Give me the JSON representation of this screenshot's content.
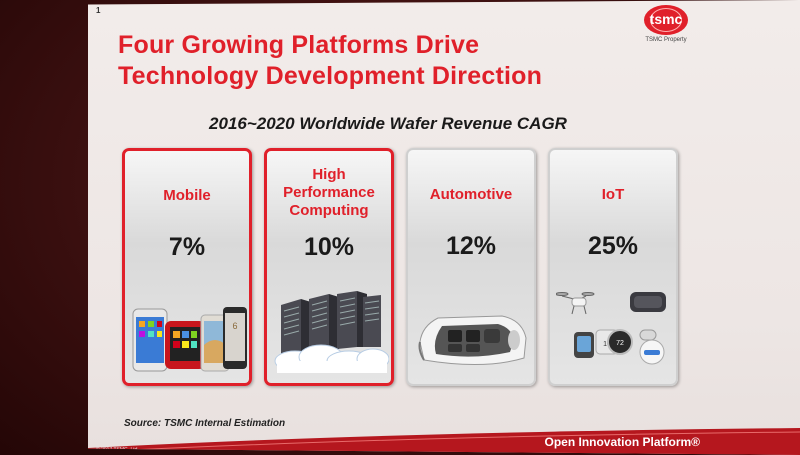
{
  "slide": {
    "number": "1",
    "title_lines": [
      "Four Growing Platforms Drive",
      "Technology Development Direction"
    ],
    "logo": {
      "wordmark": "tsmc",
      "caption": "TSMC Property"
    },
    "subtitle": "2016~2020 Worldwide Wafer Revenue CAGR",
    "platforms": [
      {
        "label": "Mobile",
        "value": "7%",
        "highlighted": true
      },
      {
        "label": "High Performance Computing",
        "value": "10%",
        "highlighted": true
      },
      {
        "label": "Automotive",
        "value": "12%",
        "highlighted": false
      },
      {
        "label": "IoT",
        "value": "25%",
        "highlighted": false
      }
    ],
    "source": "Source: TSMC Internal Estimation",
    "footer": "Open Innovation Platform®",
    "copyright": "© 2017 TSMC, Ltd"
  },
  "colors": {
    "accent": "#e0202a",
    "text_dark": "#1a1a1a",
    "card_border_plain": "#cfcfcf"
  },
  "icons": [
    "smartphones-image",
    "server-racks-image",
    "car-interior-image",
    "iot-devices-image"
  ]
}
